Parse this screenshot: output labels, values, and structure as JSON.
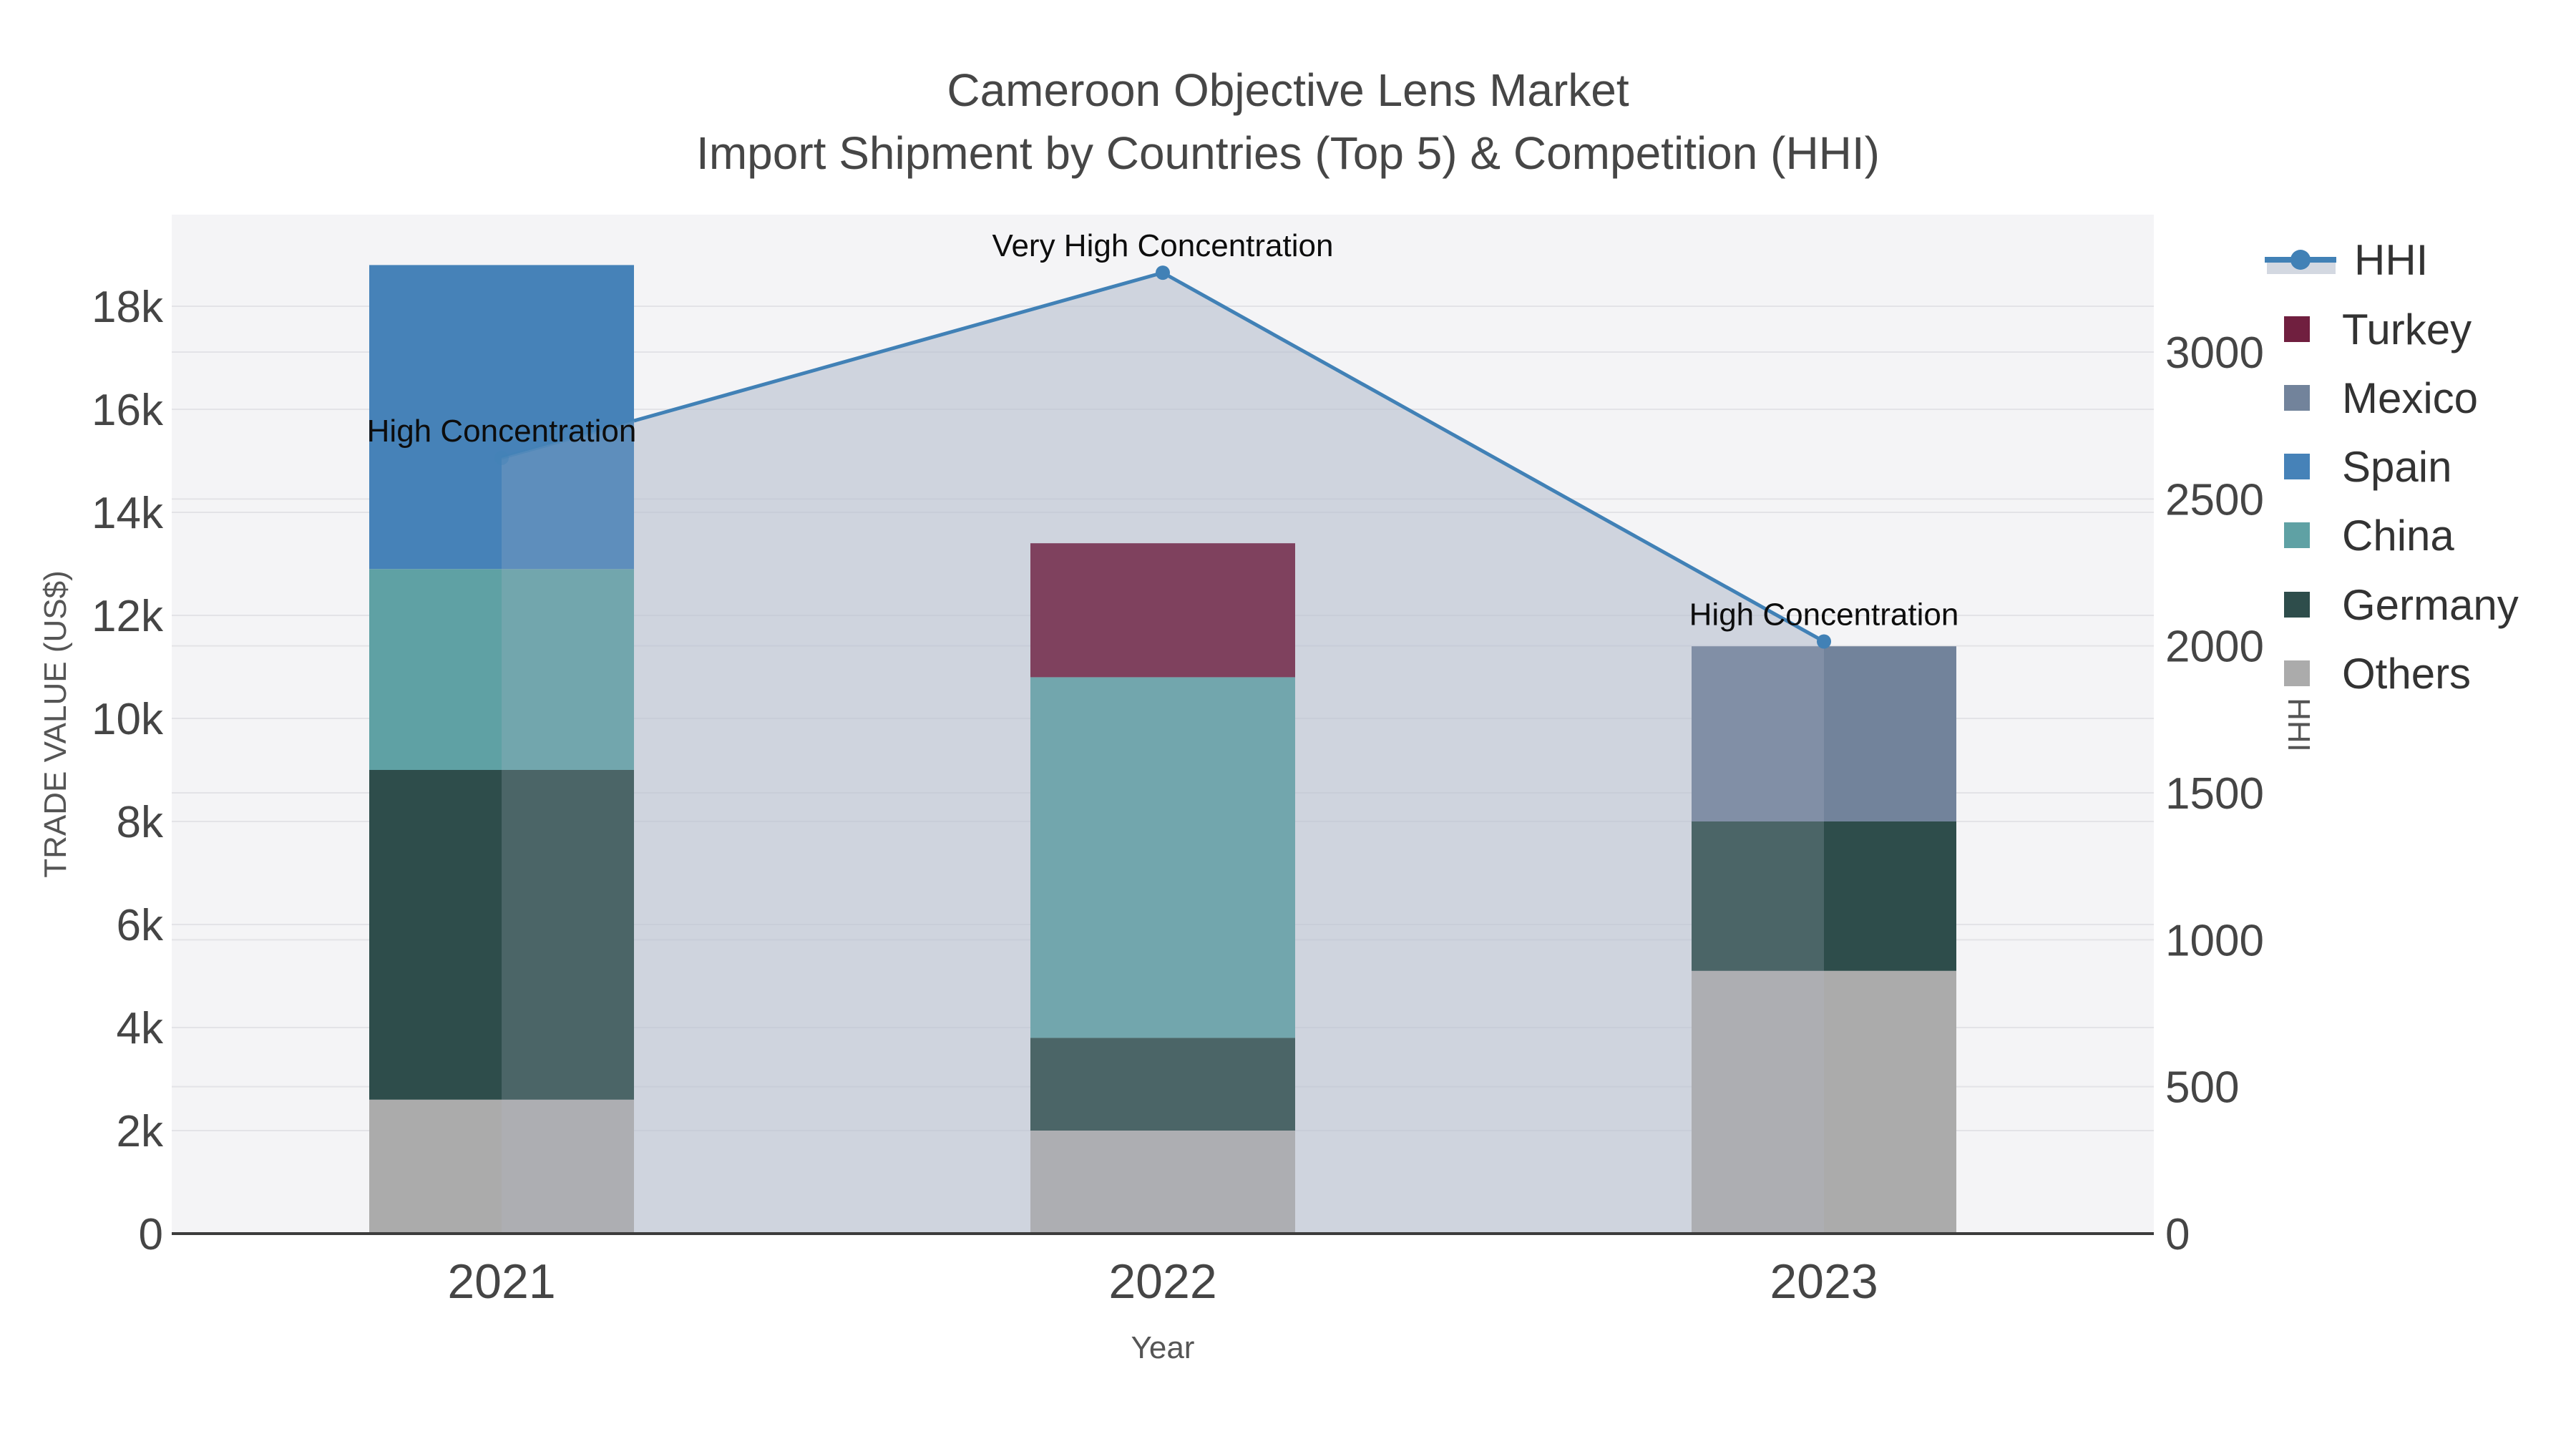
{
  "chart_data": {
    "type": "combo-stacked-bar-with-line-area",
    "title": "Cameroon Objective Lens Market",
    "subtitle": "Import Shipment by Countries (Top 5) & Competition (HHI)",
    "categories": [
      "2021",
      "2022",
      "2023"
    ],
    "x_axis": {
      "title": "Year"
    },
    "left_axis": {
      "title": "TRADE VALUE (US$)",
      "tick_labels": [
        "0",
        "2k",
        "4k",
        "6k",
        "8k",
        "10k",
        "12k",
        "14k",
        "16k",
        "18k"
      ],
      "tick_values_k": [
        0,
        2,
        4,
        6,
        8,
        10,
        12,
        14,
        16,
        18
      ],
      "max_k": 19.78,
      "grid": true
    },
    "right_axis": {
      "title": "HHI",
      "tick_labels": [
        "0",
        "500",
        "1000",
        "1500",
        "2000",
        "2500",
        "3000"
      ],
      "tick_values": [
        0,
        500,
        1000,
        1500,
        2000,
        2500,
        3000
      ],
      "max": 3467,
      "grid": true
    },
    "bar_series_bottom_to_top": [
      {
        "name": "Others",
        "color": "#ABABAB",
        "values_k": [
          2.6,
          2.0,
          5.1
        ]
      },
      {
        "name": "Germany",
        "color": "#2E4D4B",
        "values_k": [
          6.4,
          1.8,
          2.9
        ]
      },
      {
        "name": "China",
        "color": "#5FA1A4",
        "values_k": [
          3.9,
          7.0,
          0
        ]
      },
      {
        "name": "Spain",
        "color": "#4682B8",
        "values_k": [
          5.9,
          0,
          0
        ]
      },
      {
        "name": "Mexico",
        "color": "#72839B",
        "values_k": [
          0,
          0,
          3.4
        ]
      },
      {
        "name": "Turkey",
        "color": "#701F3F",
        "values_k": [
          0,
          2.6,
          0
        ]
      }
    ],
    "bar_totals_k": [
      18.8,
      13.4,
      11.4
    ],
    "hhi_line": {
      "name": "HHI",
      "line_color": "#4181B6",
      "area_color_rgb": "180,188,205",
      "values": [
        2640,
        3270,
        2015
      ],
      "annotations": [
        "High Concentration",
        "Very High Concentration",
        "High Concentration"
      ]
    },
    "legend_order": [
      "HHI",
      "Turkey",
      "Mexico",
      "Spain",
      "China",
      "Germany",
      "Others"
    ],
    "legend_position": "right",
    "colors": {
      "plot_bg": "#F4F4F6",
      "grid": "#E3E3E7",
      "axis_line": "#3C3C3C",
      "hhi_legend_area_swatch": "#D3D8E1"
    }
  }
}
